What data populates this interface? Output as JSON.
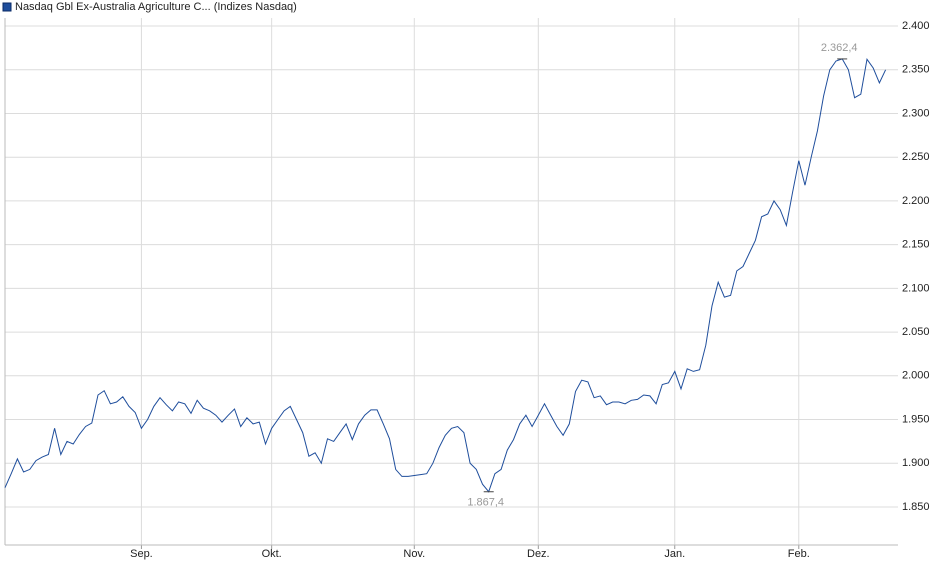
{
  "chart_data": {
    "type": "line",
    "series": [
      {
        "name": "Nasdaq Gbl Ex-Australia Agriculture C... (Indizes Nasdaq)",
        "color": "#1f4e9c",
        "values": [
          1872,
          1888,
          1905,
          1890,
          1893,
          1903,
          1907,
          1910,
          1940,
          1910,
          1925,
          1922,
          1933,
          1942,
          1946,
          1978,
          1983,
          1968,
          1970,
          1976,
          1965,
          1958,
          1940,
          1950,
          1965,
          1975,
          1967,
          1960,
          1970,
          1968,
          1957,
          1972,
          1963,
          1960,
          1955,
          1947,
          1955,
          1962,
          1942,
          1952,
          1945,
          1947,
          1922,
          1940,
          1950,
          1960,
          1965,
          1950,
          1935,
          1908,
          1912,
          1900,
          1928,
          1925,
          1935,
          1945,
          1927,
          1945,
          1955,
          1961,
          1961,
          1945,
          1928,
          1893,
          1885,
          1885,
          1886,
          1887,
          1888,
          1900,
          1918,
          1932,
          1940,
          1942,
          1935,
          1900,
          1893,
          1876,
          1867.4,
          1888,
          1893,
          1915,
          1927,
          1945,
          1955,
          1942,
          1955,
          1968,
          1955,
          1942,
          1932,
          1945,
          1982,
          1995,
          1993,
          1975,
          1977,
          1967,
          1970,
          1970,
          1968,
          1972,
          1973,
          1978,
          1977,
          1968,
          1990,
          1992,
          2005,
          1985,
          2008,
          2005,
          2007,
          2035,
          2080,
          2107,
          2090,
          2092,
          2120,
          2125,
          2140,
          2155,
          2182,
          2185,
          2200,
          2190,
          2172,
          2210,
          2246,
          2218,
          2250,
          2280,
          2320,
          2350,
          2360,
          2362.4,
          2350,
          2318,
          2322,
          2362,
          2352,
          2335,
          2350
        ]
      }
    ],
    "xlim": [
      0,
      144
    ],
    "xticks": [
      {
        "value": 22,
        "label": "Sep."
      },
      {
        "value": 43,
        "label": "Okt."
      },
      {
        "value": 66,
        "label": "Nov."
      },
      {
        "value": 86,
        "label": "Dez."
      },
      {
        "value": 108,
        "label": "Jan."
      },
      {
        "value": 128,
        "label": "Feb."
      }
    ],
    "ylim": [
      1806.5,
      2409.2
    ],
    "yticks": [
      {
        "value": 1850,
        "label": "1.850"
      },
      {
        "value": 1900,
        "label": "1.900"
      },
      {
        "value": 1950,
        "label": "1.950"
      },
      {
        "value": 2000,
        "label": "2.000"
      },
      {
        "value": 2050,
        "label": "2.050"
      },
      {
        "value": 2100,
        "label": "2.100"
      },
      {
        "value": 2150,
        "label": "2.150"
      },
      {
        "value": 2200,
        "label": "2.200"
      },
      {
        "value": 2250,
        "label": "2.250"
      },
      {
        "value": 2300,
        "label": "2.300"
      },
      {
        "value": 2350,
        "label": "2.350"
      },
      {
        "value": 2400,
        "label": "2.400"
      }
    ],
    "annotations": [
      {
        "x": 135,
        "value": 2362.4,
        "label": "2.362,4"
      },
      {
        "x": 78,
        "value": 1867.4,
        "label": "1.867,4"
      }
    ],
    "grid": true
  }
}
